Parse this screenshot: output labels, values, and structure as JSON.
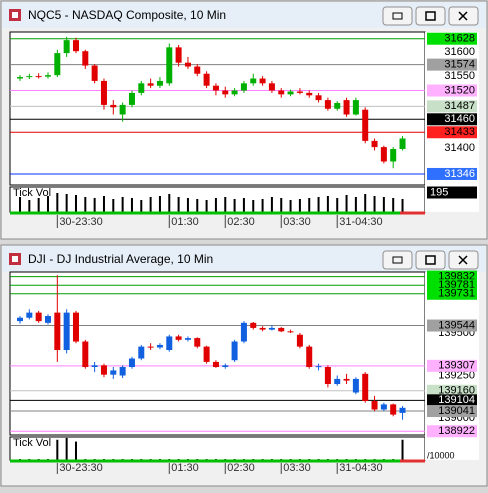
{
  "chart_data": [
    {
      "type": "candlestick",
      "title": "NQC5 - NASDAQ Composite, 10 Min",
      "volume_label": "Tick Vol",
      "up_color": "#00b000",
      "down_color": "#e00000",
      "volume_color": "#000000",
      "categories": [
        null,
        null,
        null,
        null,
        "30-23:30",
        null,
        null,
        null,
        null,
        null,
        null,
        null,
        null,
        null,
        null,
        null,
        "01:30",
        null,
        null,
        null,
        null,
        null,
        "02:30",
        null,
        null,
        null,
        null,
        null,
        "03:30",
        null,
        null,
        null,
        null,
        null,
        "31-04:30",
        null,
        null,
        null,
        null,
        null,
        null,
        null
      ],
      "open": [
        31545,
        31548,
        31550,
        31549,
        31552,
        31598,
        31625,
        31602,
        31572,
        31540,
        31490,
        31470,
        31490,
        31515,
        31535,
        31530,
        31535,
        31610,
        31578,
        31570,
        31555,
        31530,
        31520,
        31512,
        31520,
        31535,
        31545,
        31535,
        31520,
        31512,
        31518,
        31515,
        31510,
        31500,
        31482,
        31500,
        31470,
        31480,
        31415,
        31402,
        31372,
        31398
      ],
      "high": [
        31552,
        31555,
        31556,
        31558,
        31605,
        31632,
        31630,
        31605,
        31575,
        31545,
        31500,
        31495,
        31520,
        31540,
        31545,
        31548,
        31618,
        31615,
        31590,
        31575,
        31560,
        31535,
        31528,
        31525,
        31540,
        31555,
        31550,
        31540,
        31525,
        31522,
        31525,
        31520,
        31515,
        31505,
        31498,
        31505,
        31505,
        31485,
        31420,
        31405,
        31402,
        31425
      ],
      "low": [
        31540,
        31544,
        31545,
        31545,
        31548,
        31590,
        31598,
        31565,
        31535,
        31480,
        31470,
        31455,
        31485,
        31510,
        31525,
        31525,
        31530,
        31570,
        31565,
        31550,
        31525,
        31510,
        31505,
        31508,
        31515,
        31530,
        31530,
        31515,
        31505,
        31508,
        31512,
        31505,
        31495,
        31478,
        31478,
        31465,
        31468,
        31410,
        31395,
        31368,
        31358,
        31395
      ],
      "close": [
        31548,
        31550,
        31549,
        31552,
        31598,
        31625,
        31602,
        31572,
        31540,
        31490,
        31485,
        31490,
        31515,
        31535,
        31530,
        31540,
        31610,
        31578,
        31570,
        31555,
        31530,
        31520,
        31512,
        31520,
        31535,
        31545,
        31535,
        31520,
        31512,
        31518,
        31515,
        31510,
        31500,
        31482,
        31494,
        31470,
        31500,
        31415,
        31402,
        31372,
        31398,
        31420
      ],
      "volume": [
        150,
        120,
        140,
        160,
        190,
        180,
        170,
        150,
        140,
        160,
        130,
        150,
        140,
        120,
        150,
        160,
        180,
        150,
        140,
        130,
        120,
        140,
        150,
        130,
        140,
        120,
        130,
        150,
        140,
        120,
        130,
        140,
        150,
        160,
        140,
        170,
        150,
        180,
        160,
        150,
        140,
        130
      ],
      "ylim": [
        31323,
        31642
      ],
      "yticks": [
        31400,
        31550,
        31600
      ],
      "vlim": [
        0,
        250
      ],
      "vticks": [
        195
      ],
      "levels": [
        {
          "value": 31628,
          "color": "#00a000",
          "label_color": "#00e000",
          "text_color": "#000000"
        },
        {
          "value": 31574,
          "color": "#808080",
          "label_color": "#a0a0a0",
          "text_color": "#000000"
        },
        {
          "value": 31520,
          "color": "#ff80ff",
          "label_color": "#ffb0ff",
          "text_color": "#000000"
        },
        {
          "value": 31487,
          "color": "#c0c0c0",
          "label_color": "#c8e0c8",
          "text_color": "#000000"
        },
        {
          "value": 31460,
          "color": "#000000",
          "label_color": "#000000",
          "text_color": "#ffffff"
        },
        {
          "value": 31433,
          "color": "#e00000",
          "label_color": "#ff2020",
          "text_color": "#000000"
        },
        {
          "value": 31346,
          "color": "#0030ff",
          "label_color": "#3070ff",
          "text_color": "#ffffff"
        }
      ]
    },
    {
      "type": "candlestick",
      "title": "DJI - DJ Industrial Average, 10 Min",
      "volume_label": "Tick Vol",
      "volume_unit": "/10000",
      "up_color": "#1060e0",
      "down_color": "#e00000",
      "volume_color": "#000000",
      "categories": [
        null,
        null,
        null,
        null,
        "30-23:30",
        null,
        null,
        null,
        null,
        null,
        null,
        null,
        null,
        null,
        null,
        null,
        "01:30",
        null,
        null,
        null,
        null,
        null,
        "02:30",
        null,
        null,
        null,
        null,
        null,
        "03:30",
        null,
        null,
        null,
        null,
        null,
        "31-04:30",
        null,
        null,
        null,
        null,
        null,
        null,
        null
      ],
      "open": [
        139570,
        139590,
        139620,
        139560,
        139620,
        139400,
        139620,
        139450,
        139300,
        139310,
        139255,
        139250,
        139300,
        139350,
        139420,
        139415,
        139400,
        139480,
        139460,
        139470,
        139420,
        139330,
        139300,
        139340,
        139450,
        139560,
        139530,
        139520,
        139530,
        139510,
        139490,
        139420,
        139300,
        139300,
        139200,
        139230,
        139150,
        139260,
        139100,
        139050,
        139080,
        139030
      ],
      "high": [
        139600,
        139640,
        139630,
        139610,
        139840,
        139640,
        139630,
        139460,
        139330,
        139320,
        139300,
        139310,
        139360,
        139430,
        139440,
        139440,
        139490,
        139490,
        139480,
        139475,
        139425,
        139340,
        139320,
        139460,
        139570,
        139565,
        139540,
        139545,
        139535,
        139520,
        139500,
        139430,
        139320,
        139310,
        139250,
        139260,
        139240,
        139270,
        139130,
        139090,
        139085,
        139070
      ],
      "low": [
        139555,
        139580,
        139560,
        139550,
        139330,
        139380,
        139440,
        139290,
        139270,
        139240,
        139230,
        139235,
        139290,
        139340,
        139400,
        139405,
        139390,
        139450,
        139450,
        139410,
        139320,
        139295,
        139290,
        139330,
        139440,
        139520,
        139510,
        139515,
        139505,
        139500,
        139410,
        139290,
        139280,
        139180,
        139190,
        139200,
        139140,
        139090,
        139040,
        139040,
        139010,
        138990
      ],
      "close": [
        139590,
        139620,
        139570,
        139600,
        139400,
        139620,
        139450,
        139300,
        139310,
        139255,
        139280,
        139300,
        139350,
        139420,
        139415,
        139430,
        139480,
        139460,
        139470,
        139420,
        139330,
        139300,
        139310,
        139450,
        139560,
        139530,
        139520,
        139530,
        139510,
        139505,
        139420,
        139300,
        139305,
        139200,
        139230,
        139220,
        139230,
        139100,
        139050,
        139080,
        139020,
        139060
      ],
      "volume": [
        1,
        1,
        1,
        1,
        22,
        24,
        20,
        1,
        1,
        1,
        1,
        1,
        1,
        1,
        1,
        1,
        1,
        1,
        1,
        1,
        1,
        1,
        1,
        1,
        1,
        1,
        1,
        1,
        1,
        1,
        1,
        1,
        1,
        1,
        1,
        1,
        1,
        1,
        1,
        1,
        1,
        22
      ],
      "ylim": [
        138900,
        139859
      ],
      "yticks": [
        139000,
        139250,
        139500
      ],
      "vlim": [
        0,
        25
      ],
      "levels": [
        {
          "value": 139832,
          "color": "#00a000",
          "label_color": "#00e000",
          "text_color": "#000000"
        },
        {
          "value": 139781,
          "color": "#00a000",
          "label_color": "#00e000",
          "text_color": "#000000"
        },
        {
          "value": 139731,
          "color": "#00a000",
          "label_color": "#00e000",
          "text_color": "#000000"
        },
        {
          "value": 139544,
          "color": "#808080",
          "label_color": "#a0a0a0",
          "text_color": "#000000"
        },
        {
          "value": 139307,
          "color": "#ff80ff",
          "label_color": "#ffb0ff",
          "text_color": "#000000"
        },
        {
          "value": 139160,
          "color": "#c0c0c0",
          "label_color": "#c8e0c8",
          "text_color": "#000000"
        },
        {
          "value": 139104,
          "color": "#000000",
          "label_color": "#000000",
          "text_color": "#ffffff"
        },
        {
          "value": 139041,
          "color": "#808080",
          "label_color": "#a0a0a0",
          "text_color": "#000000"
        },
        {
          "value": 138922,
          "color": "#ff80ff",
          "label_color": "#ffb0ff",
          "text_color": "#000000"
        }
      ]
    }
  ]
}
